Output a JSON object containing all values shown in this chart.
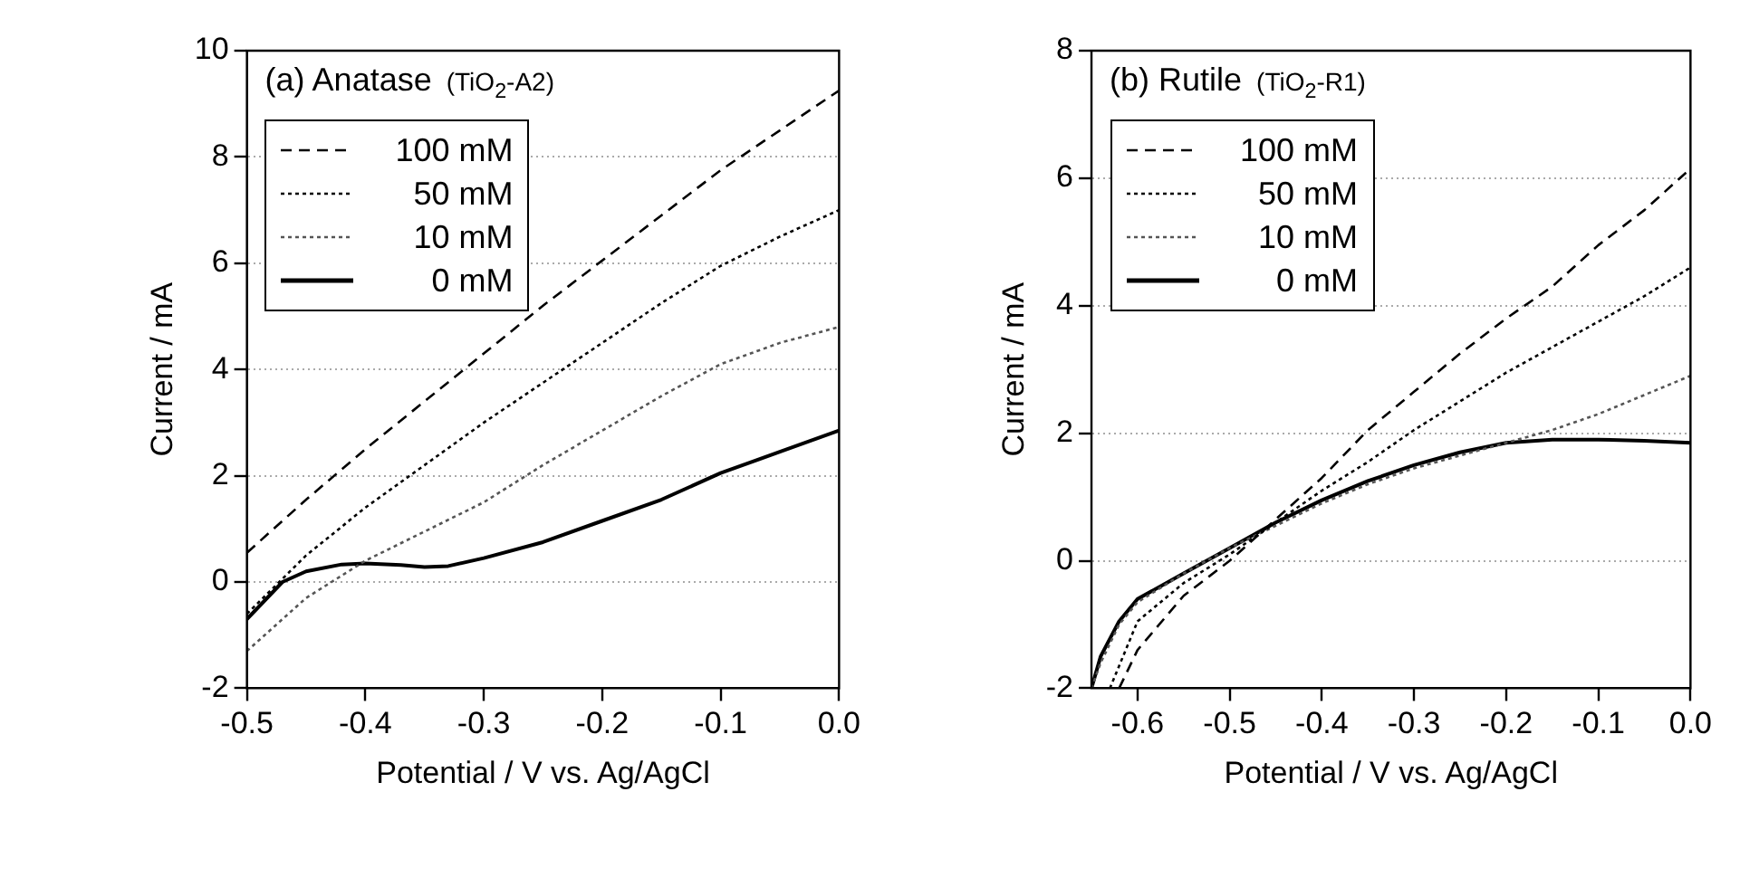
{
  "chart_data": [
    {
      "type": "line",
      "title": "(a) Anatase",
      "subtitle": "(TiO$_{2}$-A2)",
      "xlabel": "Potential / V vs. Ag/AgCl",
      "ylabel": "Current / mA",
      "xlim": [
        -0.5,
        0
      ],
      "xticks": [
        {
          "value": -0.5,
          "label": "-0.5"
        },
        {
          "value": -0.4,
          "label": "-0.4"
        },
        {
          "value": -0.3,
          "label": "-0.3"
        },
        {
          "value": -0.2,
          "label": "-0.2"
        },
        {
          "value": -0.1,
          "label": "-0.1"
        },
        {
          "value": 0,
          "label": "0.0"
        }
      ],
      "ylim": [
        -2,
        10
      ],
      "yticks": [
        -2,
        0,
        2,
        4,
        6,
        8,
        10
      ],
      "grid": "y",
      "legend": "top left",
      "marker": "none",
      "series": [
        {
          "name": "100 mM",
          "color": "#000000",
          "line_style": "dashed",
          "x": [
            -0.5,
            -0.45,
            -0.4,
            -0.35,
            -0.3,
            -0.25,
            -0.2,
            -0.15,
            -0.1,
            -0.05,
            0
          ],
          "values": [
            0.55,
            1.55,
            2.5,
            3.4,
            4.3,
            5.2,
            6.05,
            6.9,
            7.75,
            8.5,
            9.25
          ]
        },
        {
          "name": "50 mM",
          "color": "#000000",
          "line_style": "dotted",
          "x": [
            -0.5,
            -0.45,
            -0.4,
            -0.35,
            -0.3,
            -0.25,
            -0.2,
            -0.15,
            -0.1,
            -0.05,
            0
          ],
          "values": [
            -0.6,
            0.5,
            1.4,
            2.2,
            3.0,
            3.75,
            4.5,
            5.25,
            5.95,
            6.5,
            7.0
          ]
        },
        {
          "name": "10 mM",
          "color": "#555555",
          "line_style": "dotted",
          "x": [
            -0.5,
            -0.45,
            -0.4,
            -0.35,
            -0.3,
            -0.25,
            -0.2,
            -0.15,
            -0.1,
            -0.05,
            0
          ],
          "values": [
            -1.3,
            -0.3,
            0.4,
            0.95,
            1.5,
            2.2,
            2.85,
            3.5,
            4.1,
            4.5,
            4.8
          ]
        },
        {
          "name": "0 mM",
          "color": "#000000",
          "line_style": "solid",
          "x": [
            -0.5,
            -0.47,
            -0.45,
            -0.42,
            -0.4,
            -0.37,
            -0.35,
            -0.33,
            -0.3,
            -0.25,
            -0.2,
            -0.15,
            -0.1,
            -0.05,
            0
          ],
          "values": [
            -0.7,
            0,
            0.2,
            0.33,
            0.35,
            0.32,
            0.28,
            0.3,
            0.45,
            0.75,
            1.15,
            1.55,
            2.05,
            2.45,
            2.85
          ]
        }
      ]
    },
    {
      "type": "line",
      "title": "(b) Rutile",
      "subtitle": "(TiO$_{2}$-R1)",
      "xlabel": "Potential / V vs. Ag/AgCl",
      "ylabel": "Current / mA",
      "xlim": [
        -0.65,
        0
      ],
      "xticks": [
        {
          "value": -0.6,
          "label": "-0.6"
        },
        {
          "value": -0.5,
          "label": "-0.5"
        },
        {
          "value": -0.4,
          "label": "-0.4"
        },
        {
          "value": -0.3,
          "label": "-0.3"
        },
        {
          "value": -0.2,
          "label": "-0.2"
        },
        {
          "value": -0.1,
          "label": "-0.1"
        },
        {
          "value": 0,
          "label": "0.0"
        }
      ],
      "ylim": [
        -2,
        8
      ],
      "yticks": [
        -2,
        0,
        2,
        4,
        6,
        8
      ],
      "grid": "y",
      "legend": "top left",
      "marker": "none",
      "series": [
        {
          "name": "100 mM",
          "color": "#000000",
          "line_style": "dashed",
          "x": [
            -0.62,
            -0.6,
            -0.55,
            -0.5,
            -0.45,
            -0.4,
            -0.35,
            -0.3,
            -0.25,
            -0.2,
            -0.15,
            -0.1,
            -0.05,
            0
          ],
          "values": [
            -2,
            -1.4,
            -0.55,
            0.0,
            0.65,
            1.3,
            2.05,
            2.65,
            3.25,
            3.8,
            4.3,
            4.95,
            5.5,
            6.15
          ]
        },
        {
          "name": "50 mM",
          "color": "#000000",
          "line_style": "dotted",
          "x": [
            -0.63,
            -0.6,
            -0.55,
            -0.5,
            -0.45,
            -0.4,
            -0.35,
            -0.3,
            -0.25,
            -0.2,
            -0.15,
            -0.1,
            -0.05,
            0
          ],
          "values": [
            -2,
            -0.95,
            -0.35,
            0.1,
            0.6,
            1.1,
            1.55,
            2.05,
            2.5,
            2.95,
            3.35,
            3.75,
            4.15,
            4.6
          ]
        },
        {
          "name": "10 mM",
          "color": "#555555",
          "line_style": "dotted",
          "x": [
            -0.65,
            -0.64,
            -0.62,
            -0.6,
            -0.55,
            -0.5,
            -0.45,
            -0.4,
            -0.35,
            -0.3,
            -0.25,
            -0.2,
            -0.15,
            -0.1,
            -0.05,
            0
          ],
          "values": [
            -2,
            -1.6,
            -1.0,
            -0.65,
            -0.2,
            0.2,
            0.55,
            0.9,
            1.2,
            1.45,
            1.65,
            1.85,
            2.05,
            2.3,
            2.6,
            2.9
          ]
        },
        {
          "name": "0 mM",
          "color": "#000000",
          "line_style": "solid",
          "x": [
            -0.65,
            -0.64,
            -0.62,
            -0.6,
            -0.55,
            -0.5,
            -0.45,
            -0.4,
            -0.35,
            -0.3,
            -0.25,
            -0.2,
            -0.15,
            -0.1,
            -0.05,
            0
          ],
          "values": [
            -2,
            -1.5,
            -0.95,
            -0.6,
            -0.2,
            0.2,
            0.6,
            0.95,
            1.25,
            1.5,
            1.7,
            1.85,
            1.9,
            1.9,
            1.88,
            1.85
          ]
        }
      ]
    }
  ]
}
